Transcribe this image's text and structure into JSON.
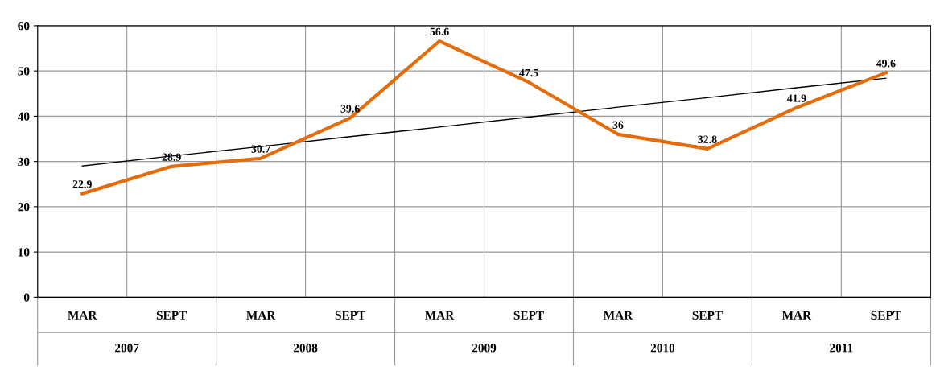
{
  "chart_data": {
    "type": "line",
    "categories": [
      "MAR",
      "SEPT",
      "MAR",
      "SEPT",
      "MAR",
      "SEPT",
      "MAR",
      "SEPT",
      "MAR",
      "SEPT"
    ],
    "annotations": [
      "2007",
      "2008",
      "2009",
      "2010",
      "2011"
    ],
    "series": [
      {
        "color": "#e46c0a",
        "values": [
          22.9,
          28.9,
          30.7,
          39.6,
          56.6,
          47.5,
          36,
          32.8,
          41.9,
          49.6
        ],
        "value_labels": [
          "22.9",
          "28.9",
          "30.7",
          "39.6",
          "56.6",
          "47.5",
          "36",
          "32.8",
          "41.9",
          "49.6"
        ]
      },
      {
        "type": "line",
        "color": "#000000",
        "values": [
          29.0,
          31.2,
          33.3,
          35.5,
          37.6,
          39.8,
          42.0,
          44.1,
          46.3,
          48.4
        ]
      }
    ],
    "ylim": [
      0,
      60
    ],
    "yticks": [
      0,
      10,
      20,
      30,
      40,
      50,
      60
    ],
    "grid": "y",
    "marker": "none",
    "line_style": "solid"
  }
}
